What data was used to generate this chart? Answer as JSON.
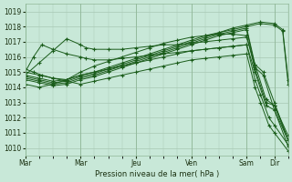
{
  "background_color": "#c8e8d8",
  "grid_color": "#a8c8b4",
  "line_color": "#1a5c1a",
  "xlabel": "Pression niveau de la mer( hPa )",
  "ylim": [
    1009.5,
    1019.5
  ],
  "yticks": [
    1010,
    1011,
    1012,
    1013,
    1014,
    1015,
    1016,
    1017,
    1018,
    1019
  ],
  "day_labels": [
    "Mar",
    "Mar",
    "Jeu",
    "Ven",
    "Sam",
    "Dir"
  ],
  "day_x": [
    0,
    2,
    4,
    6,
    8,
    9
  ],
  "xlim": [
    0,
    9.5
  ],
  "series": [
    {
      "x": [
        0,
        0.5,
        1.0,
        1.5,
        2.0,
        2.5,
        3.0,
        3.5,
        4.0,
        4.5,
        5.0,
        5.5,
        6.0,
        6.5,
        7.0,
        7.5,
        8.0,
        8.5,
        9.0,
        9.3,
        9.5
      ],
      "y": [
        1014.8,
        1014.6,
        1014.4,
        1014.5,
        1014.8,
        1015.0,
        1015.3,
        1015.6,
        1015.9,
        1016.2,
        1016.5,
        1016.8,
        1017.1,
        1017.4,
        1017.6,
        1017.9,
        1018.1,
        1018.3,
        1018.2,
        1017.8,
        1014.5
      ]
    },
    {
      "x": [
        0,
        0.5,
        1.0,
        1.5,
        2.0,
        2.5,
        3.0,
        3.5,
        4.0,
        4.5,
        5.0,
        5.5,
        6.0,
        6.5,
        7.0,
        7.5,
        8.0,
        8.5,
        9.0,
        9.3,
        9.5
      ],
      "y": [
        1014.7,
        1014.5,
        1014.3,
        1014.4,
        1014.7,
        1014.9,
        1015.2,
        1015.5,
        1015.8,
        1016.1,
        1016.4,
        1016.7,
        1017.0,
        1017.3,
        1017.6,
        1017.8,
        1018.0,
        1018.2,
        1018.1,
        1017.7,
        1014.2
      ]
    },
    {
      "x": [
        0,
        0.5,
        1.0,
        1.5,
        2.0,
        2.5,
        3.0,
        3.5,
        4.0,
        4.5,
        5.0,
        5.5,
        6.0,
        6.5,
        7.0,
        7.5,
        8.0,
        8.3,
        8.6,
        9.0,
        9.5
      ],
      "y": [
        1014.6,
        1014.4,
        1014.2,
        1014.3,
        1014.6,
        1014.8,
        1015.1,
        1015.4,
        1015.7,
        1016.0,
        1016.3,
        1016.6,
        1016.9,
        1017.2,
        1017.5,
        1017.7,
        1017.9,
        1015.5,
        1015.0,
        1013.0,
        1010.5
      ]
    },
    {
      "x": [
        0,
        0.5,
        1.0,
        1.5,
        2.0,
        2.5,
        3.0,
        3.5,
        4.0,
        4.5,
        5.0,
        5.5,
        6.0,
        6.5,
        7.0,
        7.5,
        8.0,
        8.3,
        8.6,
        9.0,
        9.5
      ],
      "y": [
        1014.5,
        1014.3,
        1014.1,
        1014.2,
        1014.5,
        1014.7,
        1015.0,
        1015.3,
        1015.6,
        1015.9,
        1016.2,
        1016.5,
        1016.8,
        1017.1,
        1017.4,
        1017.6,
        1017.8,
        1015.3,
        1014.8,
        1012.5,
        1010.1
      ]
    },
    {
      "x": [
        0,
        0.5,
        1.0,
        1.5,
        2.0,
        2.2,
        2.5,
        3.0,
        3.5,
        4.0,
        4.5,
        5.0,
        5.5,
        6.0,
        6.5,
        7.0,
        7.5,
        8.0,
        8.3,
        8.7,
        9.0,
        9.5
      ],
      "y": [
        1014.8,
        1015.6,
        1016.4,
        1017.2,
        1016.8,
        1016.6,
        1016.5,
        1016.5,
        1016.5,
        1016.6,
        1016.7,
        1016.8,
        1016.8,
        1016.9,
        1017.0,
        1017.1,
        1017.2,
        1017.3,
        1015.5,
        1013.2,
        1012.8,
        1010.8
      ]
    },
    {
      "x": [
        0,
        0.3,
        0.6,
        1.0,
        1.5,
        2.0,
        2.2,
        2.5,
        3.0,
        3.5,
        4.0,
        4.5,
        5.0,
        5.5,
        6.0,
        6.5,
        7.0,
        7.5,
        8.0,
        8.3,
        8.7,
        9.0,
        9.5
      ],
      "y": [
        1015.0,
        1016.0,
        1016.8,
        1016.5,
        1016.2,
        1016.0,
        1015.9,
        1015.8,
        1015.8,
        1015.9,
        1016.0,
        1016.1,
        1016.2,
        1016.3,
        1016.4,
        1016.5,
        1016.6,
        1016.7,
        1016.8,
        1015.0,
        1012.8,
        1012.5,
        1010.5
      ]
    },
    {
      "x": [
        0,
        0.3,
        0.6,
        1.0,
        1.5,
        2.0,
        2.5,
        3.0,
        3.5,
        4.0,
        4.5,
        5.0,
        5.5,
        6.0,
        6.5,
        7.0,
        7.5,
        8.0,
        8.3,
        8.7,
        9.0,
        9.5
      ],
      "y": [
        1015.2,
        1015.0,
        1014.8,
        1014.6,
        1014.5,
        1015.0,
        1015.4,
        1015.7,
        1016.0,
        1016.3,
        1016.6,
        1016.9,
        1017.1,
        1017.3,
        1017.4,
        1017.5,
        1017.5,
        1017.4,
        1015.2,
        1013.0,
        1012.8,
        1010.5
      ]
    },
    {
      "x": [
        0,
        0.5,
        1.0,
        1.5,
        2.0,
        2.5,
        3.0,
        3.5,
        4.0,
        4.5,
        5.0,
        5.5,
        6.0,
        6.5,
        7.0,
        7.5,
        8.0,
        8.3,
        8.5,
        8.8,
        9.0,
        9.5
      ],
      "y": [
        1014.2,
        1014.0,
        1014.2,
        1014.5,
        1014.8,
        1015.0,
        1015.2,
        1015.4,
        1015.6,
        1015.8,
        1016.0,
        1016.2,
        1016.4,
        1016.5,
        1016.6,
        1016.7,
        1016.8,
        1014.5,
        1013.5,
        1012.0,
        1011.5,
        1010.2
      ]
    },
    {
      "x": [
        0,
        0.5,
        1.0,
        1.5,
        2.0,
        2.5,
        3.0,
        3.5,
        4.0,
        4.5,
        5.0,
        5.5,
        6.0,
        6.5,
        7.0,
        7.5,
        8.0,
        8.3,
        8.5,
        8.8,
        9.0,
        9.5
      ],
      "y": [
        1015.0,
        1014.8,
        1014.6,
        1014.4,
        1014.2,
        1014.4,
        1014.6,
        1014.8,
        1015.0,
        1015.2,
        1015.4,
        1015.6,
        1015.8,
        1015.9,
        1016.0,
        1016.1,
        1016.2,
        1014.0,
        1013.0,
        1011.5,
        1011.0,
        1009.8
      ]
    }
  ]
}
